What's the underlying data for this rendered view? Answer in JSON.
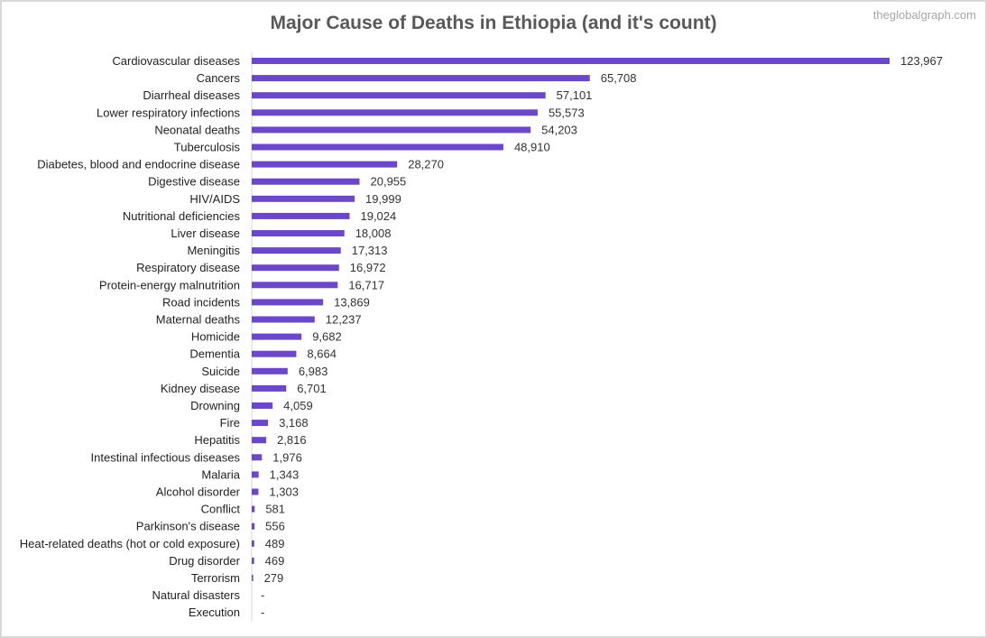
{
  "watermark": "theglobalgraph.com",
  "chart_data": {
    "type": "bar",
    "orientation": "horizontal",
    "title": "Major Cause of Deaths in Ethiopia (and it's count)",
    "xlabel": "",
    "ylabel": "",
    "grid": false,
    "legend": "none",
    "bar_color": "#6a48c9",
    "categories": [
      "Cardiovascular diseases",
      "Cancers",
      "Diarrheal diseases",
      "Lower respiratory infections",
      "Neonatal deaths",
      "Tuberculosis",
      "Diabetes, blood and endocrine disease",
      "Digestive disease",
      "HIV/AIDS",
      "Nutritional deficiencies",
      "Liver disease",
      "Meningitis",
      "Respiratory disease",
      "Protein-energy malnutrition",
      "Road incidents",
      "Maternal deaths",
      "Homicide",
      "Dementia",
      "Suicide",
      "Kidney disease",
      "Drowning",
      "Fire",
      "Hepatitis",
      "Intestinal infectious diseases",
      "Malaria",
      "Alcohol disorder",
      "Conflict",
      "Parkinson's disease",
      "Heat-related deaths (hot or cold exposure)",
      "Drug disorder",
      "Terrorism",
      "Natural disasters",
      "Execution"
    ],
    "values": [
      123967,
      65708,
      57101,
      55573,
      54203,
      48910,
      28270,
      20955,
      19999,
      19024,
      18008,
      17313,
      16972,
      16717,
      13869,
      12237,
      9682,
      8664,
      6983,
      6701,
      4059,
      3168,
      2816,
      1976,
      1343,
      1303,
      581,
      556,
      489,
      469,
      279,
      null,
      null
    ],
    "data_labels": [
      "123,967",
      "65,708",
      "57,101",
      "55,573",
      "54,203",
      "48,910",
      "28,270",
      "20,955",
      "19,999",
      "19,024",
      "18,008",
      "17,313",
      "16,972",
      "16,717",
      "13,869",
      "12,237",
      "9,682",
      "8,664",
      "6,983",
      "6,701",
      "4,059",
      "3,168",
      "2,816",
      "1,976",
      "1,343",
      "1,303",
      "581",
      "556",
      "489",
      "469",
      "279",
      "-",
      "-"
    ],
    "xlim": [
      0,
      123967
    ]
  }
}
